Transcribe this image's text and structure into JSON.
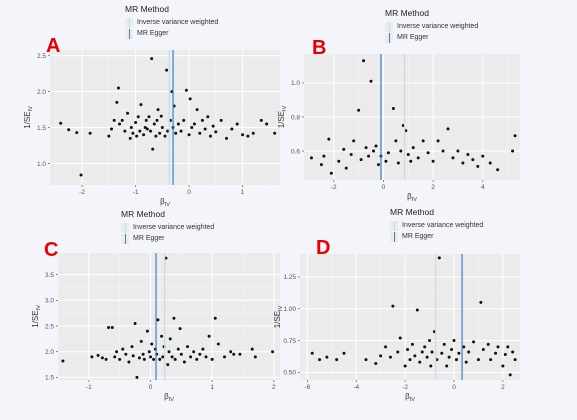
{
  "legend": {
    "title": "MR Method",
    "entries": [
      {
        "label": "Inverse variance weighted",
        "color": "#bfe0e6"
      },
      {
        "label": "MR Egger",
        "color": "#3a7fd0"
      }
    ]
  },
  "chart_data": [
    {
      "panel": "A",
      "type": "scatter",
      "xlabel": "β_IV",
      "ylabel": "1/SE_IV",
      "xlim": [
        -2.6,
        1.7
      ],
      "ylim": [
        0.7,
        2.58
      ],
      "xticks": [
        -2,
        -1,
        0,
        1
      ],
      "yticks": [
        1.0,
        1.5,
        2.0,
        2.5
      ],
      "xtick_labels": [
        "-2",
        "-1",
        "0",
        "1"
      ],
      "ytick_labels": [
        "1.0",
        "1.5",
        "2.0",
        "2.5"
      ],
      "vlines": {
        "ivw": -0.37,
        "egger": -0.3
      },
      "points": [
        [
          -2.4,
          1.56
        ],
        [
          -2.25,
          1.47
        ],
        [
          -2.1,
          1.43
        ],
        [
          -2.02,
          0.84
        ],
        [
          -1.85,
          1.42
        ],
        [
          -1.5,
          1.38
        ],
        [
          -1.45,
          1.48
        ],
        [
          -1.4,
          1.6
        ],
        [
          -1.35,
          1.85
        ],
        [
          -1.32,
          2.05
        ],
        [
          -1.3,
          1.55
        ],
        [
          -1.25,
          1.6
        ],
        [
          -1.2,
          1.45
        ],
        [
          -1.15,
          1.7
        ],
        [
          -1.1,
          1.35
        ],
        [
          -1.08,
          1.5
        ],
        [
          -1.05,
          1.42
        ],
        [
          -1.0,
          1.57
        ],
        [
          -0.98,
          1.38
        ],
        [
          -0.95,
          1.65
        ],
        [
          -0.92,
          1.45
        ],
        [
          -0.9,
          1.82
        ],
        [
          -0.85,
          1.4
        ],
        [
          -0.82,
          1.5
        ],
        [
          -0.8,
          1.6
        ],
        [
          -0.78,
          1.48
        ],
        [
          -0.75,
          1.65
        ],
        [
          -0.72,
          1.45
        ],
        [
          -0.7,
          2.46
        ],
        [
          -0.68,
          1.2
        ],
        [
          -0.65,
          1.55
        ],
        [
          -0.62,
          1.38
        ],
        [
          -0.6,
          1.6
        ],
        [
          -0.58,
          1.75
        ],
        [
          -0.55,
          1.42
        ],
        [
          -0.52,
          1.66
        ],
        [
          -0.5,
          1.5
        ],
        [
          -0.45,
          1.38
        ],
        [
          -0.42,
          2.3
        ],
        [
          -0.4,
          1.45
        ],
        [
          -0.35,
          1.6
        ],
        [
          -0.32,
          2.0
        ],
        [
          -0.3,
          1.5
        ],
        [
          -0.28,
          1.8
        ],
        [
          -0.25,
          1.42
        ],
        [
          -0.2,
          1.55
        ],
        [
          -0.15,
          1.45
        ],
        [
          -0.1,
          1.6
        ],
        [
          -0.05,
          2.02
        ],
        [
          0.0,
          1.4
        ],
        [
          0.02,
          1.9
        ],
        [
          0.05,
          1.5
        ],
        [
          0.1,
          1.55
        ],
        [
          0.15,
          1.75
        ],
        [
          0.2,
          1.42
        ],
        [
          0.25,
          1.6
        ],
        [
          0.3,
          1.48
        ],
        [
          0.35,
          1.65
        ],
        [
          0.4,
          1.38
        ],
        [
          0.45,
          1.52
        ],
        [
          0.5,
          1.44
        ],
        [
          0.6,
          1.6
        ],
        [
          0.7,
          1.35
        ],
        [
          0.8,
          1.48
        ],
        [
          0.9,
          1.55
        ],
        [
          1.0,
          1.4
        ],
        [
          1.1,
          1.38
        ],
        [
          1.2,
          1.42
        ],
        [
          1.35,
          1.6
        ],
        [
          1.45,
          1.55
        ],
        [
          1.6,
          1.42
        ]
      ]
    },
    {
      "panel": "B",
      "type": "scatter",
      "xlabel": "β_IV",
      "ylabel": "1/SE_IV",
      "xlim": [
        -3.2,
        5.5
      ],
      "ylim": [
        0.43,
        1.17
      ],
      "xticks": [
        -2,
        0,
        2,
        4
      ],
      "yticks": [
        0.6,
        0.8,
        1.0
      ],
      "xtick_labels": [
        "-2",
        "0",
        "2",
        "4"
      ],
      "ytick_labels": [
        "0.6",
        "0.8",
        "1.0"
      ],
      "vlines": {
        "ivw": 0.85,
        "egger": -0.1
      },
      "points": [
        [
          -2.9,
          0.56
        ],
        [
          -2.5,
          0.52
        ],
        [
          -2.4,
          0.57
        ],
        [
          -2.2,
          0.67
        ],
        [
          -2.1,
          0.47
        ],
        [
          -1.8,
          0.54
        ],
        [
          -1.6,
          0.61
        ],
        [
          -1.5,
          0.5
        ],
        [
          -1.3,
          0.58
        ],
        [
          -1.2,
          0.66
        ],
        [
          -1.0,
          0.84
        ],
        [
          -0.9,
          0.55
        ],
        [
          -0.8,
          1.13
        ],
        [
          -0.7,
          0.62
        ],
        [
          -0.6,
          0.57
        ],
        [
          -0.5,
          1.01
        ],
        [
          -0.4,
          0.6
        ],
        [
          -0.3,
          0.63
        ],
        [
          -0.2,
          0.52
        ],
        [
          -0.1,
          0.57
        ],
        [
          0.1,
          0.54
        ],
        [
          0.2,
          0.59
        ],
        [
          0.4,
          0.85
        ],
        [
          0.5,
          0.66
        ],
        [
          0.6,
          0.53
        ],
        [
          0.7,
          0.6
        ],
        [
          0.8,
          0.75
        ],
        [
          0.9,
          0.72
        ],
        [
          1.0,
          0.58
        ],
        [
          1.1,
          0.54
        ],
        [
          1.2,
          0.62
        ],
        [
          1.4,
          0.56
        ],
        [
          1.6,
          0.66
        ],
        [
          1.8,
          0.59
        ],
        [
          2.0,
          0.54
        ],
        [
          2.2,
          0.66
        ],
        [
          2.4,
          0.6
        ],
        [
          2.6,
          0.73
        ],
        [
          2.8,
          0.56
        ],
        [
          3.0,
          0.6
        ],
        [
          3.2,
          0.53
        ],
        [
          3.4,
          0.58
        ],
        [
          3.6,
          0.55
        ],
        [
          3.8,
          0.51
        ],
        [
          4.0,
          0.57
        ],
        [
          4.3,
          0.53
        ],
        [
          4.6,
          0.49
        ],
        [
          5.2,
          0.6
        ],
        [
          5.3,
          0.69
        ]
      ]
    },
    {
      "panel": "C",
      "type": "scatter",
      "xlabel": "β_IV",
      "ylabel": "1/SE_IV",
      "xlim": [
        -1.5,
        2.1
      ],
      "ylim": [
        1.45,
        3.92
      ],
      "xticks": [
        -1,
        0,
        1,
        2
      ],
      "yticks": [
        1.5,
        2.0,
        2.5,
        3.0,
        3.5
      ],
      "xtick_labels": [
        "-1",
        "0",
        "1",
        "2"
      ],
      "ytick_labels": [
        "1.5",
        "2.0",
        "2.5",
        "3.0",
        "3.5"
      ],
      "vlines": {
        "ivw": 0.23,
        "egger": 0.09
      },
      "points": [
        [
          -1.42,
          1.82
        ],
        [
          -0.95,
          1.9
        ],
        [
          -0.85,
          1.93
        ],
        [
          -0.78,
          1.88
        ],
        [
          -0.72,
          1.85
        ],
        [
          -0.68,
          2.47
        ],
        [
          -0.62,
          2.47
        ],
        [
          -0.58,
          1.9
        ],
        [
          -0.55,
          2.0
        ],
        [
          -0.5,
          1.85
        ],
        [
          -0.45,
          2.05
        ],
        [
          -0.4,
          1.95
        ],
        [
          -0.35,
          1.8
        ],
        [
          -0.3,
          2.1
        ],
        [
          -0.28,
          1.92
        ],
        [
          -0.25,
          2.55
        ],
        [
          -0.22,
          1.5
        ],
        [
          -0.18,
          1.88
        ],
        [
          -0.15,
          2.2
        ],
        [
          -0.12,
          1.95
        ],
        [
          -0.1,
          1.85
        ],
        [
          -0.05,
          2.4
        ],
        [
          -0.02,
          2.0
        ],
        [
          0.0,
          1.9
        ],
        [
          0.02,
          2.15
        ],
        [
          0.05,
          1.85
        ],
        [
          0.08,
          2.05
        ],
        [
          0.1,
          1.95
        ],
        [
          0.12,
          2.62
        ],
        [
          0.15,
          1.85
        ],
        [
          0.18,
          2.3
        ],
        [
          0.2,
          1.9
        ],
        [
          0.22,
          2.1
        ],
        [
          0.25,
          3.82
        ],
        [
          0.28,
          1.75
        ],
        [
          0.3,
          2.0
        ],
        [
          0.32,
          2.25
        ],
        [
          0.35,
          1.9
        ],
        [
          0.38,
          2.65
        ],
        [
          0.4,
          1.85
        ],
        [
          0.45,
          2.05
        ],
        [
          0.48,
          2.45
        ],
        [
          0.5,
          1.95
        ],
        [
          0.55,
          1.8
        ],
        [
          0.6,
          2.1
        ],
        [
          0.65,
          1.9
        ],
        [
          0.7,
          2.0
        ],
        [
          0.75,
          1.85
        ],
        [
          0.8,
          1.95
        ],
        [
          0.85,
          2.05
        ],
        [
          0.9,
          1.9
        ],
        [
          0.95,
          2.3
        ],
        [
          1.0,
          1.85
        ],
        [
          1.05,
          2.65
        ],
        [
          1.1,
          2.15
        ],
        [
          1.2,
          1.9
        ],
        [
          1.3,
          2.0
        ],
        [
          1.35,
          1.95
        ],
        [
          1.45,
          1.95
        ],
        [
          1.65,
          2.05
        ],
        [
          1.7,
          1.9
        ],
        [
          1.98,
          2.0
        ]
      ]
    },
    {
      "panel": "D",
      "type": "scatter",
      "xlabel": "β_IV",
      "ylabel": "1/SE_IV",
      "xlim": [
        -6.3,
        2.7
      ],
      "ylim": [
        0.44,
        1.43
      ],
      "xticks": [
        -6,
        -4,
        -2,
        0,
        2
      ],
      "yticks": [
        0.5,
        0.75,
        1.0,
        1.25
      ],
      "xtick_labels": [
        "-6",
        "-4",
        "-2",
        "0",
        "2"
      ],
      "ytick_labels": [
        "0.50",
        "0.75",
        "1.00",
        "1.25"
      ],
      "vlines": {
        "ivw": -0.75,
        "egger": 0.33
      },
      "points": [
        [
          -5.8,
          0.65
        ],
        [
          -5.5,
          0.6
        ],
        [
          -5.2,
          0.62
        ],
        [
          -4.8,
          0.6
        ],
        [
          -4.5,
          0.65
        ],
        [
          -3.6,
          0.6
        ],
        [
          -3.2,
          0.57
        ],
        [
          -3.0,
          0.63
        ],
        [
          -2.8,
          0.7
        ],
        [
          -2.6,
          0.62
        ],
        [
          -2.5,
          1.02
        ],
        [
          -2.3,
          0.66
        ],
        [
          -2.2,
          0.77
        ],
        [
          -2.0,
          0.55
        ],
        [
          -1.9,
          0.68
        ],
        [
          -1.8,
          0.6
        ],
        [
          -1.7,
          0.72
        ],
        [
          -1.6,
          0.63
        ],
        [
          -1.5,
          0.99
        ],
        [
          -1.4,
          0.58
        ],
        [
          -1.3,
          0.66
        ],
        [
          -1.2,
          0.7
        ],
        [
          -1.1,
          0.62
        ],
        [
          -1.0,
          0.75
        ],
        [
          -0.95,
          0.55
        ],
        [
          -0.9,
          0.66
        ],
        [
          -0.8,
          0.82
        ],
        [
          -0.7,
          0.6
        ],
        [
          -0.6,
          1.4
        ],
        [
          -0.5,
          0.65
        ],
        [
          -0.4,
          0.72
        ],
        [
          -0.3,
          0.55
        ],
        [
          -0.2,
          0.62
        ],
        [
          -0.1,
          0.68
        ],
        [
          0.0,
          0.75
        ],
        [
          0.1,
          0.6
        ],
        [
          0.2,
          0.65
        ],
        [
          0.4,
          0.7
        ],
        [
          0.5,
          0.58
        ],
        [
          0.6,
          0.66
        ],
        [
          0.8,
          0.74
        ],
        [
          1.0,
          0.6
        ],
        [
          1.1,
          1.05
        ],
        [
          1.2,
          0.68
        ],
        [
          1.4,
          0.72
        ],
        [
          1.5,
          0.6
        ],
        [
          1.7,
          0.65
        ],
        [
          1.8,
          0.7
        ],
        [
          2.0,
          0.55
        ],
        [
          2.1,
          0.64
        ],
        [
          2.2,
          0.7
        ],
        [
          2.3,
          0.48
        ],
        [
          2.4,
          0.66
        ],
        [
          2.5,
          0.6
        ]
      ]
    }
  ]
}
